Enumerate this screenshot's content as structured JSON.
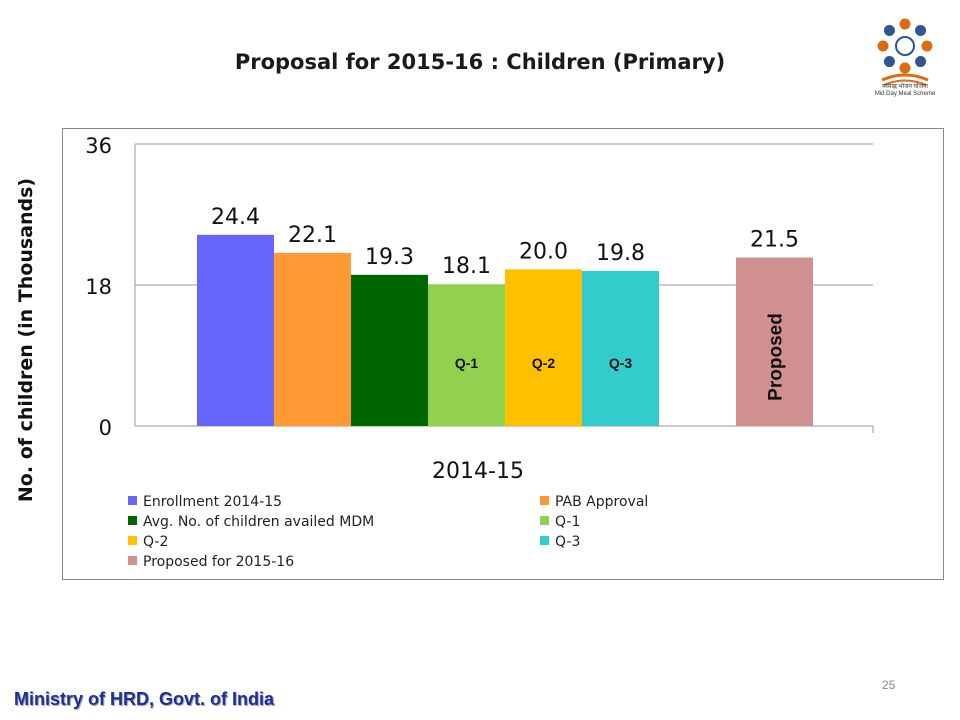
{
  "slide": {
    "title": "Proposal for 2015-16 : Children (Primary)",
    "footer": "Ministry of HRD, Govt. of India",
    "page_number": "25",
    "logo_text": "मध्याह्न भोजन योजना",
    "logo_subtext": "Mid Day Meal Scheme"
  },
  "chart_data": {
    "type": "bar",
    "title": "",
    "ylabel": "No. of children (in Thousands)",
    "xlabel": "",
    "ylim": [
      0,
      36
    ],
    "yticks": [
      "0",
      "18",
      "36"
    ],
    "grid": true,
    "legend_position": "bottom",
    "groups": [
      {
        "category": "2014-15",
        "bars": [
          {
            "name": "Enrollment 2014-15",
            "value": 24.4,
            "label": "24.4",
            "color": "#6666ff",
            "inner_label": ""
          },
          {
            "name": "PAB Approval",
            "value": 22.1,
            "label": "22.1",
            "color": "#ff9933",
            "inner_label": ""
          },
          {
            "name": "Avg. No. of children availed MDM",
            "value": 19.3,
            "label": "19.3",
            "color": "#006600",
            "inner_label": ""
          },
          {
            "name": "Q-1",
            "value": 18.1,
            "label": "18.1",
            "color": "#92d050",
            "inner_label": "Q-1"
          },
          {
            "name": "Q-2",
            "value": 20.0,
            "label": "20.0",
            "color": "#ffc000",
            "inner_label": "Q-2"
          },
          {
            "name": "Q-3",
            "value": 19.8,
            "label": "19.8",
            "color": "#33cccc",
            "inner_label": "Q-3"
          }
        ]
      },
      {
        "category": "",
        "bars": [
          {
            "name": "Proposed for 2015-16",
            "value": 21.5,
            "label": "21.5",
            "color": "#d09090",
            "inner_label": "Proposed"
          }
        ]
      }
    ],
    "legend": [
      {
        "name": "Enrollment 2014-15",
        "color": "#6666ff"
      },
      {
        "name": "PAB Approval",
        "color": "#ff9933"
      },
      {
        "name": "Avg. No. of children availed MDM",
        "color": "#006600"
      },
      {
        "name": "Q-1",
        "color": "#92d050"
      },
      {
        "name": "Q-2",
        "color": "#ffc000"
      },
      {
        "name": "Q-3",
        "color": "#33cccc"
      },
      {
        "name": "Proposed for 2015-16",
        "color": "#d09090"
      }
    ]
  }
}
